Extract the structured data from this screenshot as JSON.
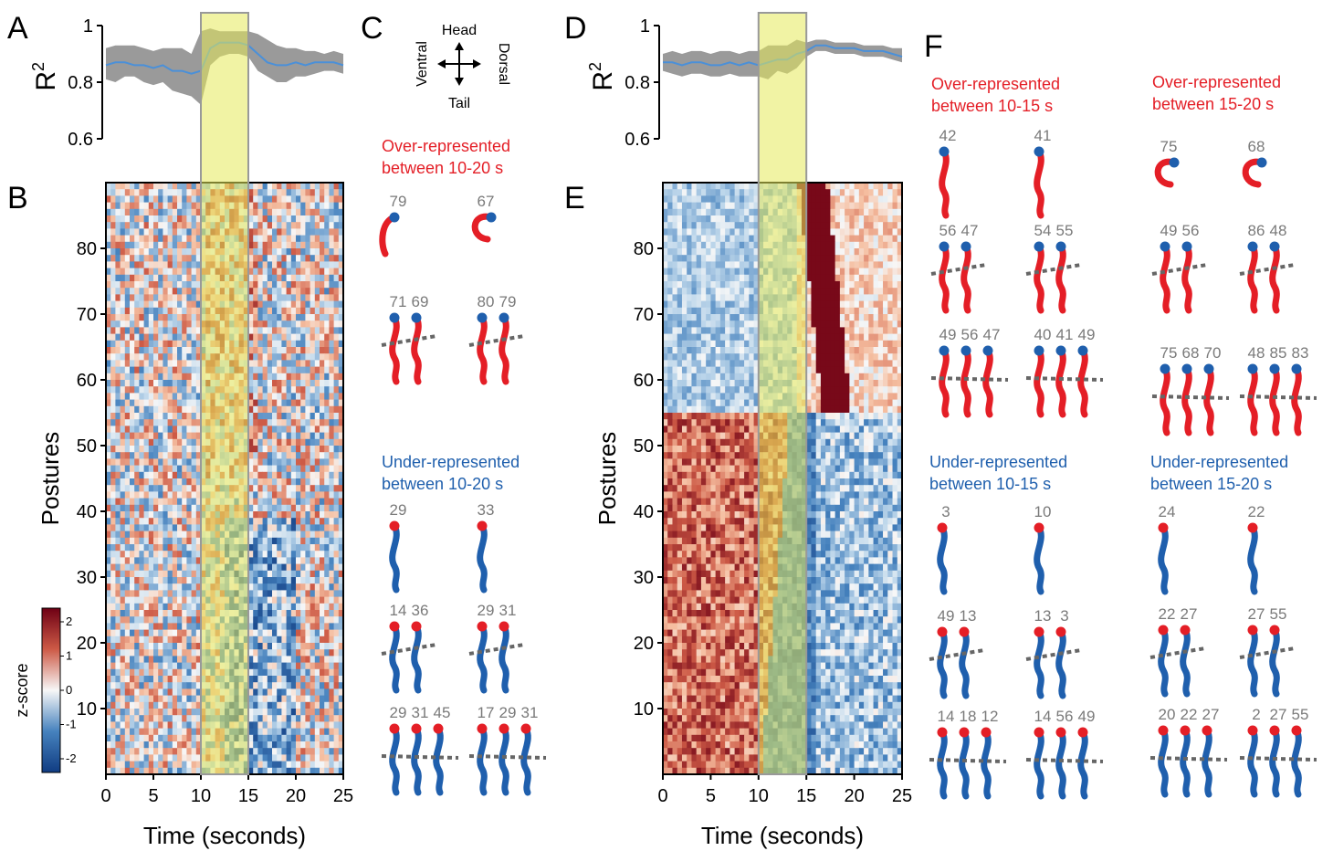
{
  "panel_letters": [
    "A",
    "B",
    "C",
    "D",
    "E",
    "F"
  ],
  "chart_data": [
    {
      "id": "A",
      "type": "line",
      "ylabel": "R",
      "ylabel_sup": "2",
      "yticks": [
        0.6,
        0.8,
        1
      ],
      "ylim": [
        0.6,
        1.0
      ],
      "xlim": [
        0,
        25
      ],
      "highlight_window": [
        10,
        15
      ],
      "series": [
        {
          "x": [
            0,
            1,
            2,
            3,
            4,
            5,
            6,
            7,
            8,
            9,
            10,
            11,
            12,
            13,
            14,
            15,
            16,
            17,
            18,
            19,
            20,
            21,
            22,
            23,
            24,
            25
          ],
          "y": [
            0.86,
            0.87,
            0.87,
            0.86,
            0.86,
            0.85,
            0.86,
            0.84,
            0.84,
            0.83,
            0.84,
            0.92,
            0.94,
            0.94,
            0.94,
            0.93,
            0.9,
            0.87,
            0.86,
            0.86,
            0.87,
            0.86,
            0.87,
            0.87,
            0.87,
            0.86
          ],
          "lower": [
            0.81,
            0.8,
            0.82,
            0.82,
            0.8,
            0.79,
            0.8,
            0.77,
            0.76,
            0.75,
            0.72,
            0.86,
            0.89,
            0.9,
            0.9,
            0.89,
            0.84,
            0.82,
            0.8,
            0.8,
            0.82,
            0.82,
            0.83,
            0.84,
            0.84,
            0.83
          ],
          "upper": [
            0.92,
            0.93,
            0.93,
            0.93,
            0.92,
            0.91,
            0.92,
            0.92,
            0.92,
            0.9,
            0.98,
            0.99,
            0.98,
            0.98,
            0.98,
            0.98,
            0.97,
            0.95,
            0.93,
            0.92,
            0.92,
            0.91,
            0.91,
            0.9,
            0.91,
            0.9
          ]
        }
      ]
    },
    {
      "id": "B",
      "type": "heatmap",
      "ylabel": "Postures",
      "xlabel": "Time (seconds)",
      "xticks": [
        0,
        5,
        10,
        15,
        20,
        25
      ],
      "yticks": [
        10,
        20,
        30,
        40,
        50,
        60,
        70,
        80
      ],
      "xlim": [
        0,
        25
      ],
      "ylim": [
        0,
        90
      ],
      "highlight_window": [
        10,
        15
      ],
      "colorbar": {
        "title": "z-score",
        "ticks": [
          2,
          1,
          0,
          -1,
          -2
        ]
      }
    },
    {
      "id": "D",
      "type": "line",
      "ylabel": "R",
      "ylabel_sup": "2",
      "yticks": [
        0.6,
        0.8,
        1
      ],
      "ylim": [
        0.6,
        1.0
      ],
      "xlim": [
        0,
        25
      ],
      "highlight_window": [
        10,
        15
      ],
      "series": [
        {
          "x": [
            0,
            1,
            2,
            3,
            4,
            5,
            6,
            7,
            8,
            9,
            10,
            11,
            12,
            13,
            14,
            15,
            16,
            17,
            18,
            19,
            20,
            21,
            22,
            23,
            24,
            25
          ],
          "y": [
            0.87,
            0.87,
            0.86,
            0.87,
            0.87,
            0.86,
            0.86,
            0.87,
            0.86,
            0.87,
            0.86,
            0.87,
            0.88,
            0.88,
            0.9,
            0.91,
            0.93,
            0.93,
            0.92,
            0.92,
            0.92,
            0.91,
            0.91,
            0.91,
            0.9,
            0.89
          ],
          "lower": [
            0.84,
            0.83,
            0.82,
            0.83,
            0.83,
            0.82,
            0.82,
            0.83,
            0.82,
            0.82,
            0.82,
            0.81,
            0.84,
            0.83,
            0.85,
            0.89,
            0.91,
            0.91,
            0.9,
            0.9,
            0.9,
            0.89,
            0.89,
            0.89,
            0.88,
            0.87
          ],
          "upper": [
            0.9,
            0.91,
            0.9,
            0.91,
            0.91,
            0.9,
            0.91,
            0.91,
            0.9,
            0.91,
            0.91,
            0.93,
            0.93,
            0.93,
            0.95,
            0.94,
            0.95,
            0.95,
            0.94,
            0.94,
            0.94,
            0.93,
            0.93,
            0.93,
            0.92,
            0.92
          ]
        }
      ]
    },
    {
      "id": "E",
      "type": "heatmap",
      "ylabel": "Postures",
      "xlabel": "Time (seconds)",
      "xticks": [
        0,
        5,
        10,
        15,
        20,
        25
      ],
      "yticks": [
        10,
        20,
        30,
        40,
        50,
        60,
        70,
        80
      ],
      "xlim": [
        0,
        25
      ],
      "ylim": [
        0,
        90
      ],
      "highlight_window": [
        10,
        15
      ]
    }
  ],
  "compass": {
    "head": "Head",
    "tail": "Tail",
    "ventral": "Ventral",
    "dorsal": "Dorsal"
  },
  "panel_C": {
    "over": {
      "title_lines": [
        "Over-represented",
        "between 10-20 s"
      ],
      "rows": [
        [
          [
            "79"
          ],
          [
            "67"
          ]
        ],
        [
          [
            "71",
            "69"
          ],
          [
            "80",
            "79"
          ]
        ]
      ]
    },
    "under": {
      "title_lines": [
        "Under-represented",
        "between 10-20 s"
      ],
      "rows": [
        [
          [
            "29"
          ],
          [
            "33"
          ]
        ],
        [
          [
            "14",
            "36"
          ],
          [
            "29",
            "31"
          ]
        ],
        [
          [
            "29",
            "31",
            "45"
          ],
          [
            "17",
            "29",
            "31"
          ]
        ]
      ]
    }
  },
  "panel_F": {
    "over_10_15": {
      "title_lines": [
        "Over-represented",
        "between 10-15 s"
      ],
      "rows": [
        [
          [
            "42"
          ],
          [
            "41"
          ]
        ],
        [
          [
            "56",
            "47"
          ],
          [
            "54",
            "55"
          ]
        ],
        [
          [
            "49",
            "56",
            "47"
          ],
          [
            "40",
            "41",
            "49"
          ]
        ]
      ]
    },
    "over_15_20": {
      "title_lines": [
        "Over-represented",
        "between 15-20 s"
      ],
      "rows": [
        [
          [
            "75"
          ],
          [
            "68"
          ]
        ],
        [
          [
            "49",
            "56"
          ],
          [
            "86",
            "48"
          ]
        ],
        [
          [
            "75",
            "68",
            "70"
          ],
          [
            "48",
            "85",
            "83"
          ]
        ]
      ]
    },
    "under_10_15": {
      "title_lines": [
        "Under-represented",
        "between 10-15 s"
      ],
      "rows": [
        [
          [
            "3"
          ],
          [
            "10"
          ]
        ],
        [
          [
            "49",
            "13"
          ],
          [
            "13",
            "3"
          ]
        ],
        [
          [
            "14",
            "18",
            "12"
          ],
          [
            "14",
            "56",
            "49"
          ]
        ]
      ]
    },
    "under_15_20": {
      "title_lines": [
        "Under-represented",
        "between 15-20 s"
      ],
      "rows": [
        [
          [
            "24"
          ],
          [
            "22"
          ]
        ],
        [
          [
            "22",
            "27"
          ],
          [
            "27",
            "55"
          ]
        ],
        [
          [
            "20",
            "22",
            "27"
          ],
          [
            "2",
            "27",
            "55"
          ]
        ]
      ]
    }
  },
  "colors": {
    "over_red": "#e41e26",
    "under_blue": "#1f5fad",
    "highlight": "#e6e95a",
    "band_gray": "#9a9a9a",
    "mean_line": "#4a90d9"
  }
}
